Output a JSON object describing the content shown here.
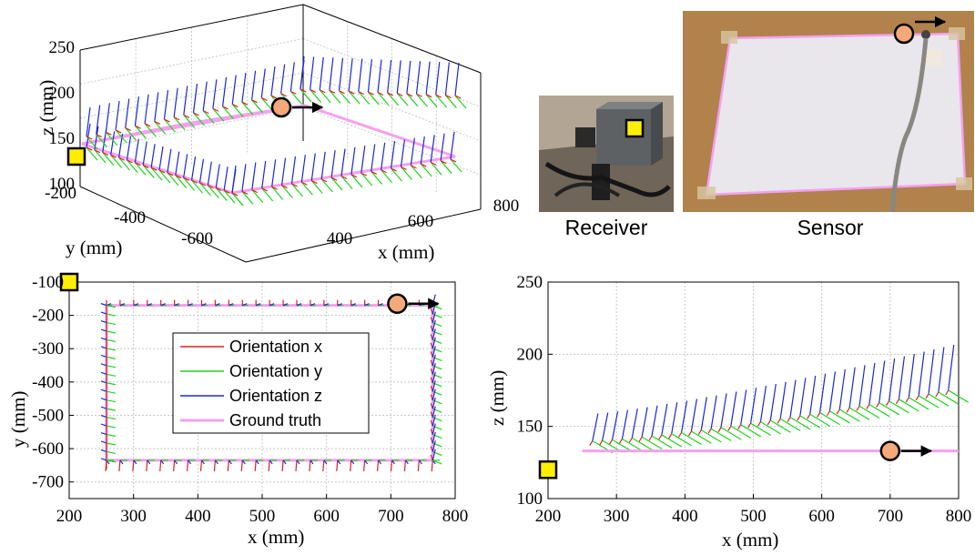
{
  "colors": {
    "orientation_x": "#e0201a",
    "orientation_y": "#1fd41f",
    "orientation_z": "#1a28d8",
    "ground_truth": "#f5a0f0",
    "sensor_marker": "#f4a97a",
    "receiver_marker": "#ffee00",
    "grid": "#c8c8c8"
  },
  "photos": {
    "receiver_caption": "Receiver",
    "sensor_caption": "Sensor"
  },
  "chart_data": [
    {
      "type": "line",
      "panel": "3d-view",
      "xlabel": "x (mm)",
      "ylabel": "y (mm)",
      "zlabel": "z (mm)",
      "x_ticks": [
        "400",
        "600",
        "800"
      ],
      "y_ticks": [
        "-200",
        "-400",
        "-600"
      ],
      "z_ticks": [
        "100",
        "150",
        "200",
        "250"
      ],
      "xlim": [
        250,
        800
      ],
      "ylim": [
        -650,
        -170
      ],
      "zlim": [
        100,
        250
      ],
      "ground_truth": {
        "x": [
          255,
          765,
          765,
          255,
          255
        ],
        "y": [
          -170,
          -170,
          -635,
          -635,
          -170
        ],
        "z": [
          133,
          133,
          133,
          133,
          133
        ]
      },
      "sensor_path_z": [
        150,
        220
      ]
    },
    {
      "type": "line",
      "panel": "xy-view",
      "xlabel": "x (mm)",
      "ylabel": "y (mm)",
      "x_ticks": [
        "200",
        "300",
        "400",
        "500",
        "600",
        "700",
        "800"
      ],
      "y_ticks": [
        "-100",
        "-200",
        "-300",
        "-400",
        "-500",
        "-600",
        "-700"
      ],
      "xlim": [
        200,
        800
      ],
      "ylim": [
        -750,
        -100
      ],
      "legend": [
        "Orientation x",
        "Orientation y",
        "Orientation z",
        "Ground truth"
      ],
      "ground_truth": {
        "x": [
          258,
          765,
          765,
          258,
          258
        ],
        "y": [
          -170,
          -170,
          -635,
          -635,
          -170
        ]
      },
      "receiver": {
        "x": 200,
        "y": -100
      },
      "sensor_start": {
        "x": 710,
        "y": -165
      }
    },
    {
      "type": "line",
      "panel": "xz-view",
      "xlabel": "x (mm)",
      "ylabel": "z (mm)",
      "x_ticks": [
        "200",
        "300",
        "400",
        "500",
        "600",
        "700",
        "800"
      ],
      "y_ticks": [
        "100",
        "150",
        "200",
        "250"
      ],
      "xlim": [
        200,
        800
      ],
      "ylim": [
        100,
        250
      ],
      "ground_truth": {
        "x": [
          250,
          800
        ],
        "z": [
          133,
          133
        ]
      },
      "orientation_origin_z": {
        "x": [
          265,
          785
        ],
        "z": [
          140,
          175
        ]
      },
      "receiver": {
        "x": 200,
        "z": 120
      },
      "sensor_start": {
        "x": 700,
        "z": 133
      }
    }
  ]
}
